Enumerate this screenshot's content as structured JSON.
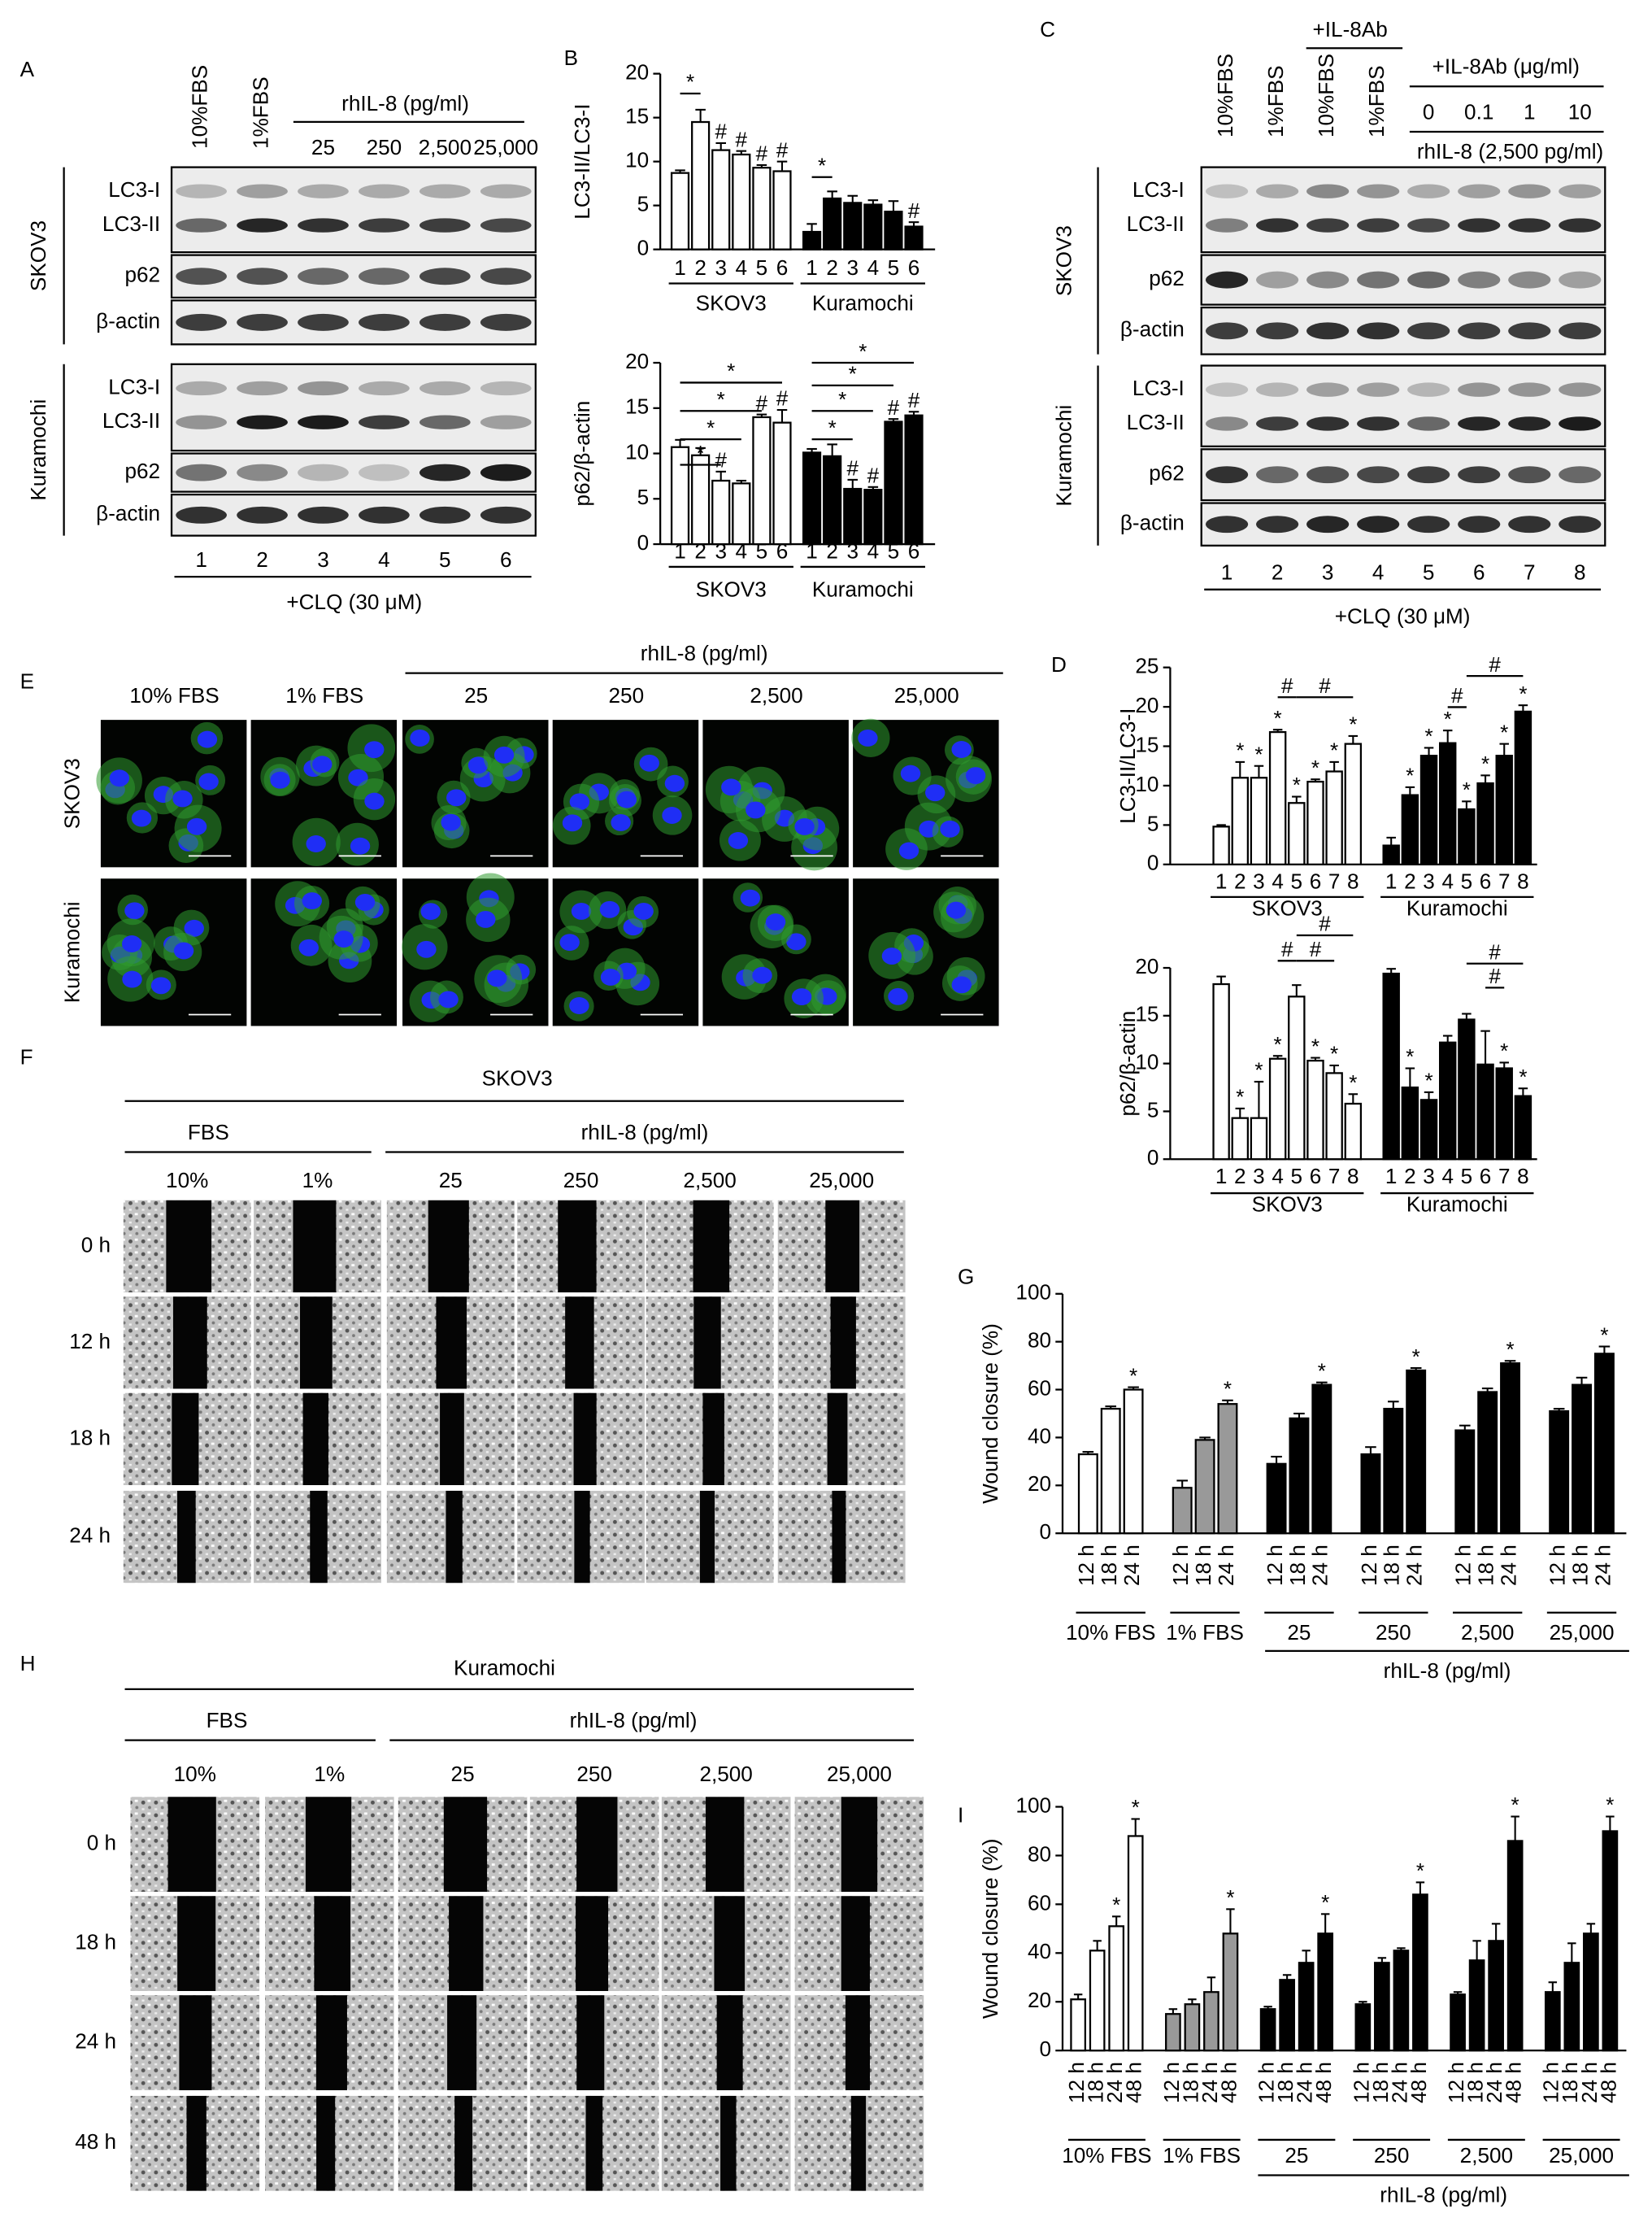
{
  "panel_letters": [
    "A",
    "B",
    "C",
    "D",
    "E",
    "F",
    "G",
    "H",
    "I"
  ],
  "blot_a": {
    "lane_headers": [
      "10%FBS",
      "1%FBS"
    ],
    "treatment": "rhIL-8 (pg/ml)",
    "doses": [
      "25",
      "250",
      "2,500",
      "25,000"
    ],
    "cell_lines": [
      "SKOV3",
      "Kuramochi"
    ],
    "rows": [
      "LC3-I",
      "LC3-II",
      "p62",
      "β-actin"
    ],
    "lanes": [
      "1",
      "2",
      "3",
      "4",
      "5",
      "6"
    ],
    "footer": "+CLQ (30 μM)"
  },
  "blot_c": {
    "lane_headers": [
      "10%FBS",
      "1%FBS",
      "10%FBS",
      "1%FBS"
    ],
    "antibody": "+IL-8Ab",
    "antibody_dose": "+IL-8Ab (μg/ml)",
    "doses": [
      "0",
      "0.1",
      "1",
      "10"
    ],
    "treatment": "rhIL-8 (2,500 pg/ml)",
    "cell_lines": [
      "SKOV3",
      "Kuramochi"
    ],
    "rows": [
      "LC3-I",
      "LC3-II",
      "p62",
      "β-actin"
    ],
    "lanes": [
      "1",
      "2",
      "3",
      "4",
      "5",
      "6",
      "7",
      "8"
    ],
    "footer": "+CLQ (30 μM)"
  },
  "images_e": {
    "treatment": "rhIL-8 (pg/ml)",
    "columns": [
      "10% FBS",
      "1% FBS",
      "25",
      "250",
      "2,500",
      "25,000"
    ],
    "rows": [
      "SKOV3",
      "Kuramochi"
    ]
  },
  "wound_f": {
    "cell_line": "SKOV3",
    "fbs": "FBS",
    "treatment": "rhIL-8 (pg/ml)",
    "columns": [
      "10%",
      "1%",
      "25",
      "250",
      "2,500",
      "25,000"
    ],
    "rows": [
      "0 h",
      "12 h",
      "18 h",
      "24 h"
    ]
  },
  "wound_h": {
    "cell_line": "Kuramochi",
    "fbs": "FBS",
    "treatment": "rhIL-8 (pg/ml)",
    "columns": [
      "10%",
      "1%",
      "25",
      "250",
      "2,500",
      "25,000"
    ],
    "rows": [
      "0 h",
      "18 h",
      "24 h",
      "48 h"
    ]
  },
  "chart_data": [
    {
      "type": "bar",
      "ylabel": "LC3-II/LC3-I",
      "ylim": [
        0,
        20
      ],
      "yticks": [
        0,
        5,
        10,
        15,
        20
      ],
      "series": [
        {
          "name": "SKOV3",
          "color": "#ffffff",
          "categories": [
            "1",
            "2",
            "3",
            "4",
            "5",
            "6"
          ],
          "values": [
            8.7,
            14.5,
            11.3,
            10.8,
            9.3,
            8.9
          ],
          "errors": [
            0.3,
            1.4,
            0.8,
            0.4,
            0.3,
            1.1
          ],
          "markers": [
            null,
            null,
            "#",
            "#",
            "#",
            "#"
          ]
        },
        {
          "name": "Kuramochi",
          "color": "#000000",
          "categories": [
            "1",
            "2",
            "3",
            "4",
            "5",
            "6"
          ],
          "values": [
            2.0,
            5.8,
            5.3,
            5.1,
            4.3,
            2.6
          ],
          "errors": [
            0.9,
            0.8,
            0.8,
            0.5,
            1.2,
            0.5
          ],
          "markers": [
            null,
            null,
            null,
            null,
            null,
            "#"
          ]
        }
      ],
      "bracket_labels": [
        "*",
        "*"
      ]
    },
    {
      "type": "bar",
      "ylabel": "p62/β-actin",
      "ylim": [
        0,
        20
      ],
      "yticks": [
        0,
        5,
        10,
        15,
        20
      ],
      "series": [
        {
          "name": "SKOV3",
          "color": "#ffffff",
          "categories": [
            "1",
            "2",
            "3",
            "4",
            "5",
            "6"
          ],
          "values": [
            10.7,
            9.8,
            7.0,
            6.7,
            14.0,
            13.4
          ],
          "errors": [
            0.8,
            0.8,
            1.0,
            0.3,
            0.3,
            1.4
          ],
          "markers": [
            null,
            null,
            "#",
            null,
            "#",
            "#"
          ]
        },
        {
          "name": "Kuramochi",
          "color": "#000000",
          "categories": [
            "1",
            "2",
            "3",
            "4",
            "5",
            "6"
          ],
          "values": [
            10.1,
            9.7,
            6.1,
            6.0,
            13.5,
            14.2
          ],
          "errors": [
            0.4,
            1.3,
            1.0,
            0.3,
            0.3,
            0.4
          ],
          "markers": [
            null,
            null,
            "#",
            "#",
            "#",
            "#"
          ]
        }
      ],
      "bracket_labels": [
        "*",
        "*",
        "*",
        "*",
        "*",
        "*",
        "*",
        "*"
      ]
    },
    {
      "type": "bar",
      "ylabel": "LC3-II/LC3-I",
      "ylim": [
        0,
        25
      ],
      "yticks": [
        0,
        5,
        10,
        15,
        20,
        25
      ],
      "series": [
        {
          "name": "SKOV3",
          "color": "#ffffff",
          "categories": [
            "1",
            "2",
            "3",
            "4",
            "5",
            "6",
            "7",
            "8"
          ],
          "values": [
            4.8,
            11.0,
            11.0,
            16.8,
            7.8,
            10.5,
            11.8,
            15.3
          ],
          "errors": [
            0.2,
            2.0,
            1.5,
            0.3,
            0.8,
            0.3,
            1.2,
            1.0
          ],
          "markers": [
            null,
            "*",
            "*",
            "*",
            "*",
            "*",
            "*",
            "*"
          ]
        },
        {
          "name": "Kuramochi",
          "color": "#000000",
          "categories": [
            "1",
            "2",
            "3",
            "4",
            "5",
            "6",
            "7",
            "8"
          ],
          "values": [
            2.4,
            8.8,
            13.8,
            15.4,
            7.0,
            10.3,
            13.8,
            19.4
          ],
          "errors": [
            1.0,
            1.0,
            1.0,
            1.6,
            1.0,
            1.0,
            1.5,
            0.8
          ],
          "markers": [
            null,
            "*",
            "*",
            "*",
            "*",
            "*",
            "*",
            "*"
          ]
        }
      ],
      "bracket_labels": [
        "#",
        "#",
        "#",
        "#"
      ]
    },
    {
      "type": "bar",
      "ylabel": "p62/β-actin",
      "ylim": [
        0,
        20
      ],
      "yticks": [
        0,
        5,
        10,
        15,
        20
      ],
      "series": [
        {
          "name": "SKOV3",
          "color": "#ffffff",
          "categories": [
            "1",
            "2",
            "3",
            "4",
            "5",
            "6",
            "7",
            "8"
          ],
          "values": [
            18.3,
            4.3,
            4.3,
            10.5,
            17.0,
            10.3,
            9.0,
            5.8
          ],
          "errors": [
            0.8,
            1.0,
            3.8,
            0.3,
            1.2,
            0.3,
            0.8,
            1.0
          ],
          "markers": [
            null,
            "*",
            "*",
            "*",
            null,
            "*",
            "*",
            "*"
          ]
        },
        {
          "name": "Kuramochi",
          "color": "#000000",
          "categories": [
            "1",
            "2",
            "3",
            "4",
            "5",
            "6",
            "7",
            "8"
          ],
          "values": [
            19.4,
            7.5,
            6.2,
            12.2,
            14.6,
            9.9,
            9.5,
            6.6
          ],
          "errors": [
            0.5,
            2.0,
            0.8,
            0.7,
            0.6,
            3.5,
            0.6,
            0.8
          ],
          "markers": [
            null,
            "*",
            "*",
            null,
            null,
            null,
            "*",
            "*"
          ]
        }
      ],
      "bracket_labels": [
        "#",
        "#",
        "#",
        "#",
        "#"
      ]
    },
    {
      "type": "bar",
      "ylabel": "Wound closure (%)",
      "ylim": [
        0,
        100
      ],
      "yticks": [
        0,
        20,
        40,
        60,
        80,
        100
      ],
      "group_title": "rhIL-8 (pg/ml)",
      "series": [
        {
          "name": "10% FBS",
          "color": "#ffffff",
          "categories": [
            "12 h",
            "18 h",
            "24 h"
          ],
          "values": [
            33,
            52,
            60
          ],
          "errors": [
            1,
            1,
            1
          ],
          "markers": [
            null,
            null,
            "*"
          ]
        },
        {
          "name": "1% FBS",
          "color": "#999999",
          "categories": [
            "12 h",
            "18 h",
            "24 h"
          ],
          "values": [
            19,
            39,
            54
          ],
          "errors": [
            3,
            1,
            1.5
          ],
          "markers": [
            null,
            null,
            "*"
          ]
        },
        {
          "name": "25",
          "color": "#000000",
          "categories": [
            "12 h",
            "18 h",
            "24 h"
          ],
          "values": [
            29,
            48,
            62
          ],
          "errors": [
            3,
            2,
            1
          ],
          "markers": [
            null,
            null,
            "*"
          ]
        },
        {
          "name": "250",
          "color": "#000000",
          "categories": [
            "12 h",
            "18 h",
            "24 h"
          ],
          "values": [
            33,
            52,
            68
          ],
          "errors": [
            3,
            3,
            1
          ],
          "markers": [
            null,
            null,
            "*"
          ]
        },
        {
          "name": "2,500",
          "color": "#000000",
          "categories": [
            "12 h",
            "18 h",
            "24 h"
          ],
          "values": [
            43,
            59,
            71
          ],
          "errors": [
            2,
            1.5,
            1
          ],
          "markers": [
            null,
            null,
            "*"
          ]
        },
        {
          "name": "25,000",
          "color": "#000000",
          "categories": [
            "12 h",
            "18 h",
            "24 h"
          ],
          "values": [
            51,
            62,
            75
          ],
          "errors": [
            1,
            3,
            3
          ],
          "markers": [
            null,
            null,
            "*"
          ]
        }
      ]
    },
    {
      "type": "bar",
      "ylabel": "Wound closure (%)",
      "ylim": [
        0,
        100
      ],
      "yticks": [
        0,
        20,
        40,
        60,
        80,
        100
      ],
      "group_title": "rhIL-8 (pg/ml)",
      "series": [
        {
          "name": "10% FBS",
          "color": "#ffffff",
          "categories": [
            "12 h",
            "18 h",
            "24 h",
            "48 h"
          ],
          "values": [
            21,
            41,
            51,
            88
          ],
          "errors": [
            2,
            4,
            4,
            7
          ],
          "markers": [
            null,
            null,
            "*",
            "*"
          ]
        },
        {
          "name": "1% FBS",
          "color": "#999999",
          "categories": [
            "12 h",
            "18 h",
            "24 h",
            "48 h"
          ],
          "values": [
            15,
            19,
            24,
            48
          ],
          "errors": [
            2,
            2,
            6,
            10
          ],
          "markers": [
            null,
            null,
            null,
            "*"
          ]
        },
        {
          "name": "25",
          "color": "#000000",
          "categories": [
            "12 h",
            "18 h",
            "24 h",
            "48 h"
          ],
          "values": [
            17,
            29,
            36,
            48
          ],
          "errors": [
            1,
            2,
            5,
            8
          ],
          "markers": [
            null,
            null,
            null,
            "*"
          ]
        },
        {
          "name": "250",
          "color": "#000000",
          "categories": [
            "12 h",
            "18 h",
            "24 h",
            "48 h"
          ],
          "values": [
            19,
            36,
            41,
            64
          ],
          "errors": [
            1,
            2,
            1,
            5
          ],
          "markers": [
            null,
            null,
            null,
            "*"
          ]
        },
        {
          "name": "2,500",
          "color": "#000000",
          "categories": [
            "12 h",
            "18 h",
            "24 h",
            "48 h"
          ],
          "values": [
            23,
            37,
            45,
            86
          ],
          "errors": [
            1,
            8,
            7,
            10
          ],
          "markers": [
            null,
            null,
            null,
            "*"
          ]
        },
        {
          "name": "25,000",
          "color": "#000000",
          "categories": [
            "12 h",
            "18 h",
            "24 h",
            "48 h"
          ],
          "values": [
            24,
            36,
            48,
            90
          ],
          "errors": [
            4,
            8,
            4,
            6
          ],
          "markers": [
            null,
            null,
            null,
            "*"
          ]
        }
      ]
    }
  ]
}
